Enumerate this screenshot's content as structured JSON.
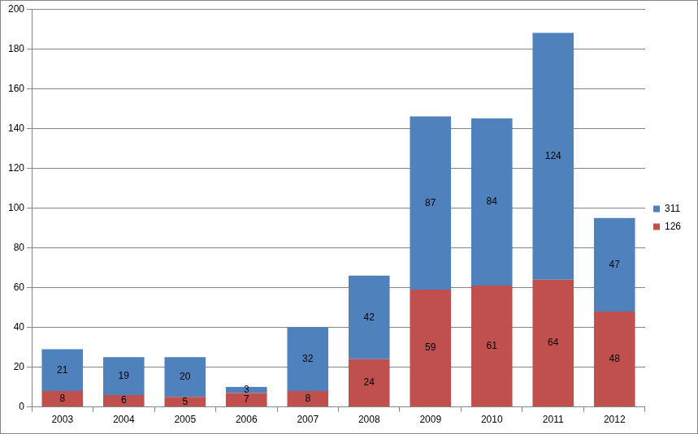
{
  "chart_data": {
    "type": "bar",
    "stacked": true,
    "categories": [
      "2003",
      "2004",
      "2005",
      "2006",
      "2007",
      "2008",
      "2009",
      "2010",
      "2011",
      "2012"
    ],
    "series": [
      {
        "name": "126",
        "color": "#C0504D",
        "values": [
          8,
          6,
          5,
          7,
          8,
          24,
          59,
          61,
          64,
          48
        ]
      },
      {
        "name": "311",
        "color": "#4F81BD",
        "values": [
          21,
          19,
          20,
          3,
          32,
          42,
          87,
          84,
          124,
          47
        ]
      }
    ],
    "ylim": [
      0,
      200
    ],
    "yticks": [
      0,
      20,
      40,
      60,
      80,
      100,
      120,
      140,
      160,
      180,
      200
    ],
    "grid": true,
    "legend": "right",
    "data_labels": true
  }
}
